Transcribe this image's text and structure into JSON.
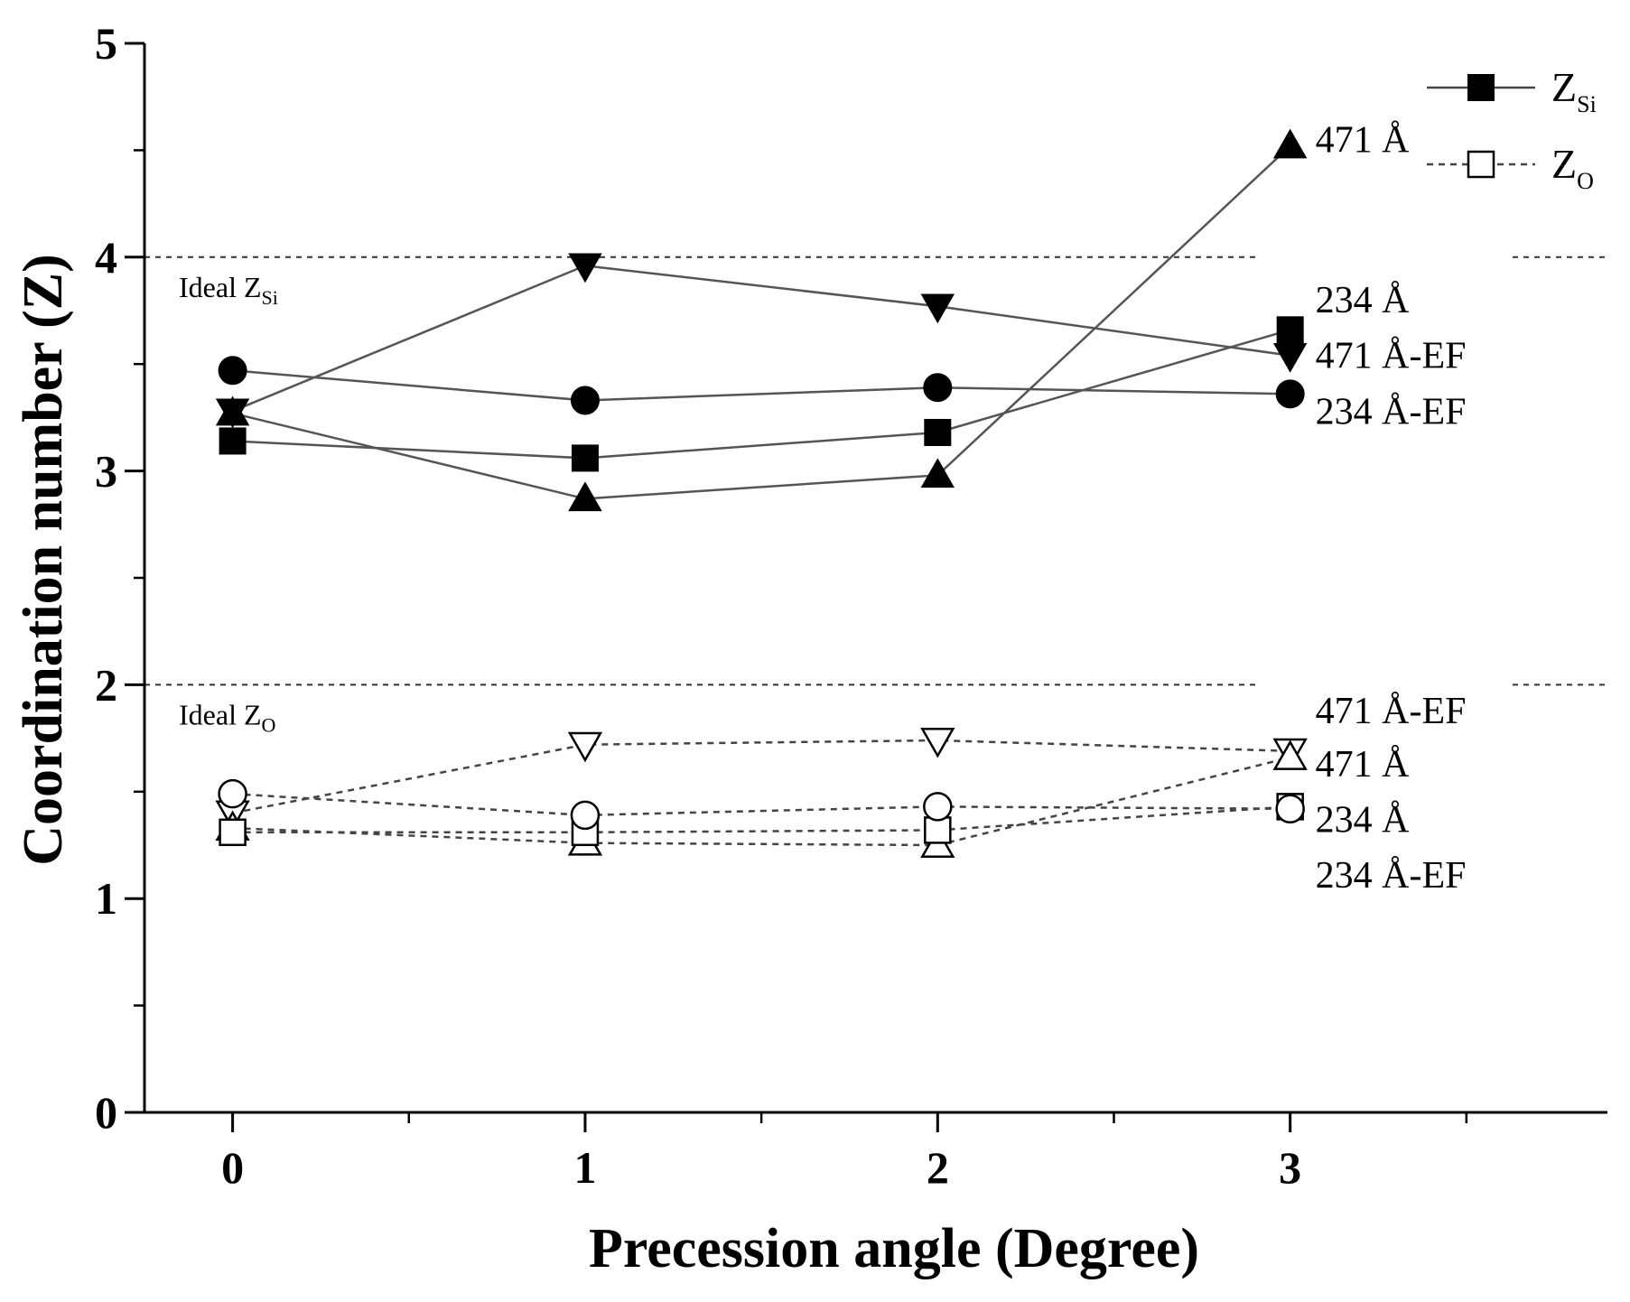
{
  "chart_data": {
    "type": "scatter",
    "xlabel": "Precession angle (Degree)",
    "ylabel": "Coordination number (Z)",
    "xlim": [
      -0.25,
      3.9
    ],
    "ylim": [
      0,
      5
    ],
    "x_ticks": [
      0,
      1,
      2,
      3
    ],
    "y_ticks": [
      0,
      1,
      2,
      3,
      4,
      5
    ],
    "x_tick_labels": [
      "0",
      "1",
      "2",
      "3"
    ],
    "y_tick_labels": [
      "0",
      "1",
      "2",
      "3",
      "4",
      "5"
    ],
    "x": [
      0,
      1,
      2,
      3
    ],
    "legend": {
      "position": "top-right",
      "entries": [
        {
          "symbol": "Z",
          "sub": "Si",
          "line": "solid",
          "marker": "filled-square"
        },
        {
          "symbol": "Z",
          "sub": "O",
          "line": "dashed",
          "marker": "open-square"
        }
      ]
    },
    "reference_lines": [
      {
        "y": 4,
        "label": "Ideal Z",
        "label_sub": "Si",
        "style": "dotted"
      },
      {
        "y": 2,
        "label": "Ideal Z",
        "label_sub": "O",
        "style": "dotted"
      }
    ],
    "series": [
      {
        "name": "471 Å",
        "group": "Z_Si",
        "marker": "triangle-up",
        "filled": true,
        "line": "solid",
        "values": [
          3.27,
          2.87,
          2.98,
          4.52
        ]
      },
      {
        "name": "234 Å",
        "group": "Z_Si",
        "marker": "square",
        "filled": true,
        "line": "solid",
        "values": [
          3.14,
          3.06,
          3.18,
          3.66
        ]
      },
      {
        "name": "471 Å-EF",
        "group": "Z_Si",
        "marker": "triangle-down",
        "filled": true,
        "line": "solid",
        "values": [
          3.28,
          3.96,
          3.77,
          3.54
        ]
      },
      {
        "name": "234 Å-EF",
        "group": "Z_Si",
        "marker": "circle",
        "filled": true,
        "line": "solid",
        "values": [
          3.47,
          3.33,
          3.39,
          3.36
        ]
      },
      {
        "name": "471 Å-EF",
        "group": "Z_O",
        "marker": "triangle-down",
        "filled": false,
        "line": "dashed",
        "values": [
          1.4,
          1.72,
          1.74,
          1.69
        ]
      },
      {
        "name": "471 Å",
        "group": "Z_O",
        "marker": "triangle-up",
        "filled": false,
        "line": "dashed",
        "values": [
          1.33,
          1.26,
          1.25,
          1.66
        ]
      },
      {
        "name": "234 Å",
        "group": "Z_O",
        "marker": "square",
        "filled": false,
        "line": "dashed",
        "values": [
          1.31,
          1.31,
          1.32,
          1.43
        ]
      },
      {
        "name": "234 Å-EF",
        "group": "Z_O",
        "marker": "circle",
        "filled": false,
        "line": "dashed",
        "values": [
          1.49,
          1.39,
          1.43,
          1.42
        ]
      }
    ],
    "end_labels": [
      {
        "text": "471 Å",
        "y": 4.55
      },
      {
        "text": "234 Å",
        "y": 3.8
      },
      {
        "text": "471 Å-EF",
        "y": 3.54
      },
      {
        "text": "234 Å-EF",
        "y": 3.28
      },
      {
        "text": "471 Å-EF",
        "y": 1.88
      },
      {
        "text": "471 Å",
        "y": 1.63
      },
      {
        "text": "234 Å",
        "y": 1.37
      },
      {
        "text": "234 Å-EF",
        "y": 1.11
      }
    ]
  }
}
